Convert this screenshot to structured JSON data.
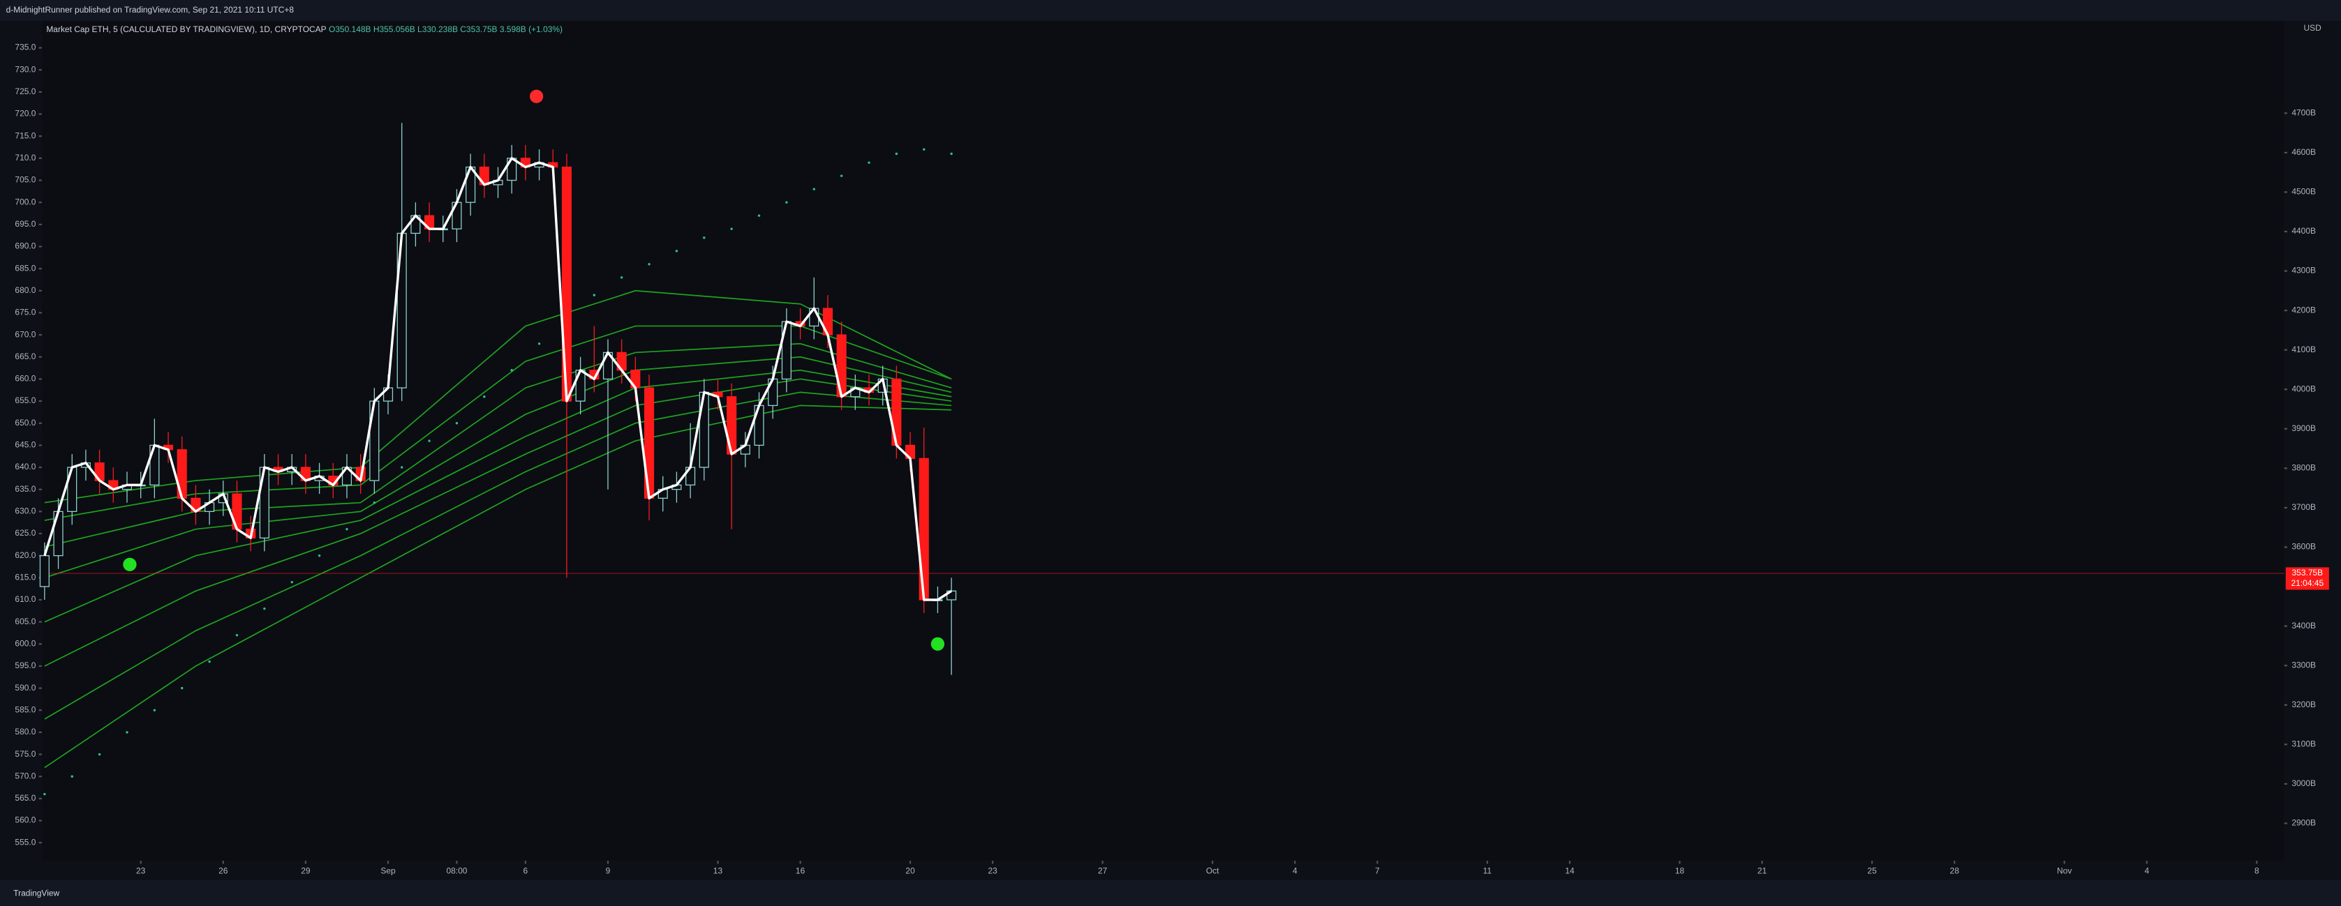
{
  "header": {
    "published": "d-MidnightRunner published on TradingView.com, Sep 21, 2021 10:11 UTC+8",
    "brand": "TradingView",
    "currency": "USD"
  },
  "chart_data": {
    "type": "candlestick",
    "title": "Market Cap ETH, 5 (CALCULATED BY TRADINGVIEW), 1D, CRYPTOCAP",
    "ohlc_legend": [
      "O350.148B",
      "H355.056B",
      "L330.238B",
      "C353.75B",
      "3.598B (+1.03%)"
    ],
    "x": [
      19.5,
      20,
      20.5,
      21,
      21.5,
      22,
      22.5,
      23,
      23.5,
      24,
      24.5,
      25,
      25.5,
      26,
      26.5,
      27,
      27.5,
      28,
      28.5,
      29,
      29.5,
      30,
      30.5,
      31,
      31.5,
      32,
      32.5,
      33,
      33.5,
      34,
      34.5,
      35,
      35.5,
      36,
      36.5,
      37,
      37.5,
      38,
      38.5,
      39,
      39.5,
      40,
      40.5,
      41,
      41.5,
      42,
      42.5,
      43,
      43.5,
      44,
      44.5,
      45,
      45.5,
      46,
      46.5,
      47,
      47.5,
      48,
      48.5,
      49,
      49.5,
      50,
      50.5,
      51,
      51.5,
      52,
      52.5
    ],
    "open": [
      613,
      620,
      630,
      640,
      641,
      637,
      635,
      636,
      636,
      645,
      644,
      633,
      630,
      632,
      634,
      626,
      624,
      640,
      639,
      640,
      637,
      638,
      636,
      640,
      637,
      655,
      658,
      693,
      697,
      694,
      694,
      700,
      708,
      704,
      705,
      710,
      708,
      709,
      708,
      655,
      662,
      660,
      666,
      662,
      658,
      633,
      635,
      636,
      640,
      657,
      656,
      643,
      645,
      654,
      660,
      673,
      672,
      676,
      670,
      656,
      658,
      657,
      660,
      645,
      642,
      610,
      610
    ],
    "high": [
      623,
      633,
      643,
      644,
      644,
      640,
      639,
      639,
      651,
      648,
      647,
      636,
      635,
      637,
      637,
      629,
      643,
      643,
      643,
      643,
      641,
      641,
      643,
      643,
      658,
      661,
      718,
      700,
      700,
      697,
      703,
      711,
      711,
      708,
      713,
      713,
      712,
      712,
      711,
      665,
      672,
      669,
      669,
      665,
      661,
      638,
      639,
      650,
      660,
      660,
      659,
      648,
      657,
      663,
      676,
      676,
      683,
      679,
      673,
      661,
      661,
      663,
      663,
      648,
      649,
      613,
      615
    ],
    "low": [
      610,
      617,
      627,
      637,
      634,
      632,
      632,
      633,
      633,
      641,
      630,
      627,
      627,
      629,
      623,
      621,
      621,
      636,
      636,
      634,
      634,
      633,
      633,
      634,
      634,
      652,
      655,
      690,
      691,
      691,
      691,
      697,
      701,
      701,
      702,
      705,
      705,
      705,
      615,
      652,
      657,
      635,
      659,
      655,
      628,
      630,
      632,
      633,
      637,
      653,
      626,
      640,
      642,
      651,
      657,
      669,
      669,
      667,
      653,
      653,
      654,
      654,
      642,
      639,
      607,
      607,
      593
    ],
    "close": [
      620,
      630,
      640,
      641,
      637,
      635,
      636,
      636,
      645,
      644,
      633,
      630,
      632,
      634,
      626,
      624,
      640,
      639,
      640,
      637,
      638,
      636,
      640,
      637,
      655,
      658,
      693,
      697,
      694,
      694,
      700,
      708,
      704,
      705,
      710,
      708,
      709,
      708,
      655,
      662,
      660,
      666,
      662,
      658,
      633,
      635,
      636,
      640,
      657,
      656,
      643,
      645,
      654,
      660,
      673,
      672,
      676,
      670,
      656,
      658,
      657,
      660,
      645,
      642,
      610,
      610,
      612
    ],
    "up_color": "#8fd3cf",
    "down_color": "#ff1a1a",
    "line": {
      "color": "#ffffff",
      "values": [
        620,
        630,
        640,
        641,
        637,
        635,
        636,
        636,
        645,
        644,
        633,
        630,
        632,
        634,
        626,
        624,
        640,
        639,
        640,
        637,
        638,
        636,
        640,
        637,
        655,
        658,
        693,
        697,
        694,
        694,
        700,
        708,
        704,
        705,
        710,
        708,
        709,
        708,
        655,
        662,
        660,
        666,
        662,
        658,
        633,
        635,
        636,
        640,
        657,
        656,
        643,
        645,
        654,
        660,
        673,
        672,
        676,
        670,
        656,
        658,
        657,
        660,
        645,
        642,
        610,
        610,
        612
      ]
    },
    "ribbon": {
      "color": "#1fa31f",
      "x": [
        19.5,
        25,
        31,
        37,
        41,
        47,
        52.5
      ],
      "series": [
        [
          632,
          637,
          640,
          672,
          680,
          677,
          660
        ],
        [
          628,
          634,
          636,
          664,
          672,
          672,
          660
        ],
        [
          622,
          630,
          632,
          658,
          666,
          668,
          658
        ],
        [
          615,
          626,
          630,
          652,
          662,
          665,
          657
        ],
        [
          605,
          620,
          628,
          647,
          658,
          662,
          656
        ],
        [
          595,
          612,
          625,
          643,
          654,
          660,
          655
        ],
        [
          583,
          603,
          620,
          639,
          650,
          657,
          654
        ],
        [
          572,
          595,
          615,
          635,
          646,
          654,
          653
        ]
      ]
    },
    "sar": {
      "color": "#2fbf8f",
      "x": [
        19.5,
        20.5,
        21.5,
        22.5,
        23.5,
        24.5,
        25.5,
        26.5,
        27.5,
        28.5,
        29.5,
        30.5,
        31.5,
        32.5,
        33.5,
        34.5,
        35.5,
        36.5,
        37.5,
        38.5,
        39.5,
        40.5,
        41.5,
        42.5,
        43.5,
        44.5,
        45.5,
        46.5,
        47.5,
        48.5,
        49.5,
        50.5,
        51.5,
        52.5
      ],
      "values": [
        566,
        570,
        575,
        580,
        585,
        590,
        596,
        602,
        608,
        614,
        620,
        626,
        632,
        640,
        646,
        650,
        656,
        662,
        668,
        674,
        679,
        683,
        686,
        689,
        692,
        694,
        697,
        700,
        703,
        706,
        709,
        711,
        712,
        711
      ]
    },
    "signals": [
      {
        "x": 37.4,
        "value": 724,
        "color": "#ff2a2a"
      },
      {
        "x": 22.6,
        "value": 618,
        "color": "#22e022"
      },
      {
        "x": 52,
        "value": 600,
        "color": "#22e022"
      }
    ],
    "price_line": {
      "value": 616,
      "label": "353.75B",
      "countdown": "21:04:45",
      "color": "#ff1a1a"
    },
    "xlim": [
      19.4,
      101
    ],
    "ylim": [
      550.9,
      741.1
    ],
    "y2lim": [
      2805,
      4934
    ],
    "xticks": [
      {
        "value": 23,
        "label": "23"
      },
      {
        "value": 26,
        "label": "26"
      },
      {
        "value": 29,
        "label": "29"
      },
      {
        "value": 32,
        "label": "Sep"
      },
      {
        "value": 34.5,
        "label": "08:00"
      },
      {
        "value": 37,
        "label": "6"
      },
      {
        "value": 40,
        "label": "9"
      },
      {
        "value": 44,
        "label": "13"
      },
      {
        "value": 47,
        "label": "16"
      },
      {
        "value": 51,
        "label": "20"
      },
      {
        "value": 54,
        "label": "23"
      },
      {
        "value": 58,
        "label": "27"
      },
      {
        "value": 62,
        "label": "Oct"
      },
      {
        "value": 65,
        "label": "4"
      },
      {
        "value": 68,
        "label": "7"
      },
      {
        "value": 72,
        "label": "11"
      },
      {
        "value": 75,
        "label": "14"
      },
      {
        "value": 79,
        "label": "18"
      },
      {
        "value": 82,
        "label": "21"
      },
      {
        "value": 86,
        "label": "25"
      },
      {
        "value": 89,
        "label": "28"
      },
      {
        "value": 93,
        "label": "Nov"
      },
      {
        "value": 96,
        "label": "4"
      },
      {
        "value": 100,
        "label": "8"
      }
    ],
    "yticks": [
      {
        "value": 555,
        "label": "555.0"
      },
      {
        "value": 560,
        "label": "560.0"
      },
      {
        "value": 565,
        "label": "565.0"
      },
      {
        "value": 570,
        "label": "570.0"
      },
      {
        "value": 575,
        "label": "575.0"
      },
      {
        "value": 580,
        "label": "580.0"
      },
      {
        "value": 585,
        "label": "585.0"
      },
      {
        "value": 590,
        "label": "590.0"
      },
      {
        "value": 595,
        "label": "595.0"
      },
      {
        "value": 600,
        "label": "600.0"
      },
      {
        "value": 605,
        "label": "605.0"
      },
      {
        "value": 610,
        "label": "610.0"
      },
      {
        "value": 615,
        "label": "615.0"
      },
      {
        "value": 620,
        "label": "620.0"
      },
      {
        "value": 625,
        "label": "625.0"
      },
      {
        "value": 630,
        "label": "630.0"
      },
      {
        "value": 635,
        "label": "635.0"
      },
      {
        "value": 640,
        "label": "640.0"
      },
      {
        "value": 645,
        "label": "645.0"
      },
      {
        "value": 650,
        "label": "650.0"
      },
      {
        "value": 655,
        "label": "655.0"
      },
      {
        "value": 660,
        "label": "660.0"
      },
      {
        "value": 665,
        "label": "665.0"
      },
      {
        "value": 670,
        "label": "670.0"
      },
      {
        "value": 675,
        "label": "675.0"
      },
      {
        "value": 680,
        "label": "680.0"
      },
      {
        "value": 685,
        "label": "685.0"
      },
      {
        "value": 690,
        "label": "690.0"
      },
      {
        "value": 695,
        "label": "695.0"
      },
      {
        "value": 700,
        "label": "700.0"
      },
      {
        "value": 705,
        "label": "705.0"
      },
      {
        "value": 710,
        "label": "710.0"
      },
      {
        "value": 715,
        "label": "715.0"
      },
      {
        "value": 720,
        "label": "720.0"
      },
      {
        "value": 725,
        "label": "725.0"
      },
      {
        "value": 730,
        "label": "730.0"
      },
      {
        "value": 735,
        "label": "735.0"
      }
    ],
    "y2ticks": [
      {
        "value": 2900,
        "label": "2900B"
      },
      {
        "value": 3000,
        "label": "3000B"
      },
      {
        "value": 3100,
        "label": "3100B"
      },
      {
        "value": 3200,
        "label": "3200B"
      },
      {
        "value": 3300,
        "label": "3300B"
      },
      {
        "value": 3400,
        "label": "3400B"
      },
      {
        "value": 3600,
        "label": "3600B"
      },
      {
        "value": 3700,
        "label": "3700B"
      },
      {
        "value": 3800,
        "label": "3800B"
      },
      {
        "value": 3900,
        "label": "3900B"
      },
      {
        "value": 4000,
        "label": "4000B"
      },
      {
        "value": 4100,
        "label": "4100B"
      },
      {
        "value": 4200,
        "label": "4200B"
      },
      {
        "value": 4300,
        "label": "4300B"
      },
      {
        "value": 4400,
        "label": "4400B"
      },
      {
        "value": 4500,
        "label": "4500B"
      },
      {
        "value": 4600,
        "label": "4600B"
      },
      {
        "value": 4700,
        "label": "4700B"
      }
    ]
  }
}
